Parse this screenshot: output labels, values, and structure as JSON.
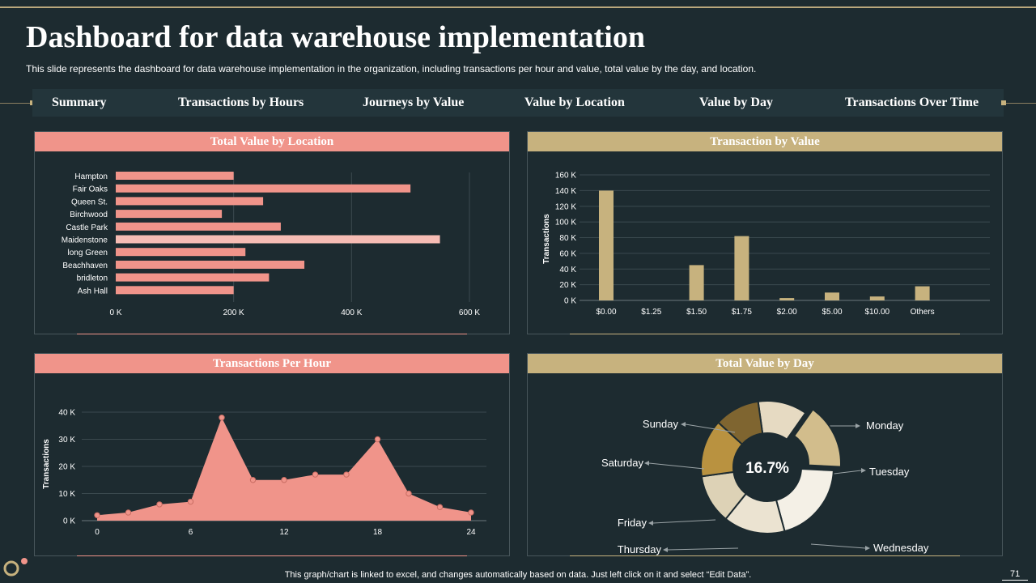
{
  "page": {
    "title": "Dashboard for data warehouse implementation",
    "subtitle": "This slide represents the dashboard for data warehouse implementation in the organization, including transactions per hour and value, total value by the day,  and location.",
    "footer": "This graph/chart is linked to excel,  and changes automatically based on data. Just left click on it and select “Edit Data”.",
    "page_number": "71"
  },
  "nav": {
    "items": [
      "Summary",
      "Transactions by Hours",
      "Journeys by Value",
      "Value by Location",
      "Value by Day",
      "Transactions Over Time"
    ]
  },
  "colors": {
    "salmon": "#f0948a",
    "salmon_light": "#f6bcb4",
    "tan": "#c7b27e",
    "background": "#1d2b30"
  },
  "chart_data": [
    {
      "id": "location",
      "type": "bar",
      "orientation": "horizontal",
      "title": "Total Value by Location",
      "categories": [
        "Hampton",
        "Fair Oaks",
        "Queen St.",
        "Birchwood",
        "Castle Park",
        "Maidenstone",
        "long Green",
        "Beachhaven",
        "bridleton",
        "Ash Hall"
      ],
      "values": [
        200000,
        500000,
        250000,
        180000,
        280000,
        550000,
        220000,
        320000,
        260000,
        200000
      ],
      "highlight_index": 5,
      "xlim": [
        0,
        600000
      ],
      "xticks": [
        0,
        200000,
        400000,
        600000
      ],
      "xtick_labels": [
        "0 K",
        "200 K",
        "400 K",
        "600 K"
      ]
    },
    {
      "id": "value",
      "type": "bar",
      "title": "Transaction by Value",
      "ylabel": "Transactions",
      "categories": [
        "$0.00",
        "$1.25",
        "$1.50",
        "$1.75",
        "$2.00",
        "$5.00",
        "$10.00",
        "Others"
      ],
      "values": [
        140000,
        0,
        45000,
        82000,
        3000,
        10000,
        5000,
        18000
      ],
      "ylim": [
        0,
        160000
      ],
      "yticks": [
        0,
        20000,
        40000,
        60000,
        80000,
        100000,
        120000,
        140000,
        160000
      ],
      "ytick_labels": [
        "0 K",
        "20 K",
        "40 K",
        "60 K",
        "80 K",
        "100 K",
        "120 K",
        "140 K",
        "160 K"
      ]
    },
    {
      "id": "hour",
      "type": "area",
      "title": "Transactions Per Hour",
      "ylabel": "Transactions",
      "x": [
        0,
        2,
        4,
        6,
        8,
        10,
        12,
        14,
        16,
        18,
        20,
        22,
        24
      ],
      "values": [
        2000,
        3000,
        6000,
        7000,
        38000,
        15000,
        15000,
        17000,
        17000,
        30000,
        10000,
        5000,
        3000
      ],
      "xlim": [
        0,
        24
      ],
      "ylim": [
        0,
        40000
      ],
      "xticks": [
        0,
        6,
        12,
        18,
        24
      ],
      "xtick_labels": [
        "0",
        "6",
        "12",
        "18",
        "24"
      ],
      "yticks": [
        0,
        10000,
        20000,
        30000,
        40000
      ],
      "ytick_labels": [
        "0 K",
        "10 K",
        "20 K",
        "30 K",
        "40 K"
      ]
    },
    {
      "id": "day",
      "type": "pie",
      "title": "Total Value by Day",
      "center_label": "16.7%",
      "categories": [
        "Monday",
        "Tuesday",
        "Wednesday",
        "Thursday",
        "Friday",
        "Saturday",
        "Sunday"
      ],
      "values": [
        12,
        16,
        20,
        15,
        12,
        14,
        11
      ],
      "colors": [
        "#e6dac2",
        "#d2bd8c",
        "#f4f0e6",
        "#ebe3d1",
        "#ddd2b6",
        "#b99240",
        "#7f6530"
      ],
      "exploded_index": 1
    }
  ]
}
